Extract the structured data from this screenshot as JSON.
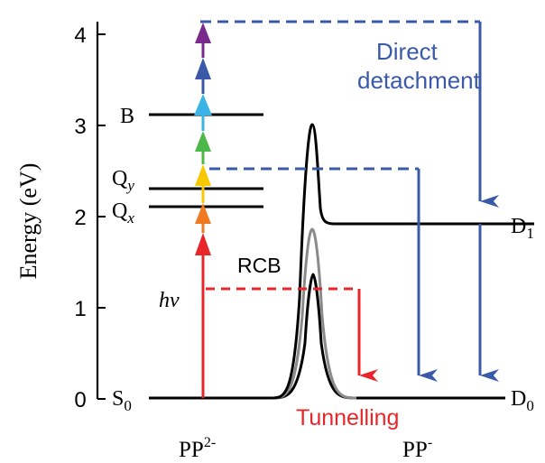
{
  "axis": {
    "ylabel": "Energy (eV)",
    "ticks": [
      "0",
      "1",
      "2",
      "3",
      "4"
    ]
  },
  "levels": {
    "S0": {
      "letter": "S",
      "sub": "0"
    },
    "Qx": {
      "letter": "Q",
      "sub": "x"
    },
    "Qy": {
      "letter": "Q",
      "sub": "y"
    },
    "B": {
      "letter": "B"
    },
    "D0": {
      "letter": "D",
      "sub": "0"
    },
    "D1": {
      "letter": "D",
      "sub": "1"
    }
  },
  "labels": {
    "hv": "hv",
    "rcb": "RCB",
    "direct_line1": "Direct",
    "direct_line2": "detachment",
    "tunnelling": "Tunnelling",
    "pp2_base": "PP",
    "pp2_sup": "2-",
    "pp1_base": "PP",
    "pp1_sup": "-"
  },
  "colors": {
    "red": "#e8262a",
    "orange": "#ef7a22",
    "yellow": "#f8c800",
    "green": "#4db848",
    "cyan": "#3ab4e6",
    "blue": "#3a5aa8",
    "purple": "#7a2a8a",
    "gray": "#8a8a8a",
    "black": "#000000"
  }
}
